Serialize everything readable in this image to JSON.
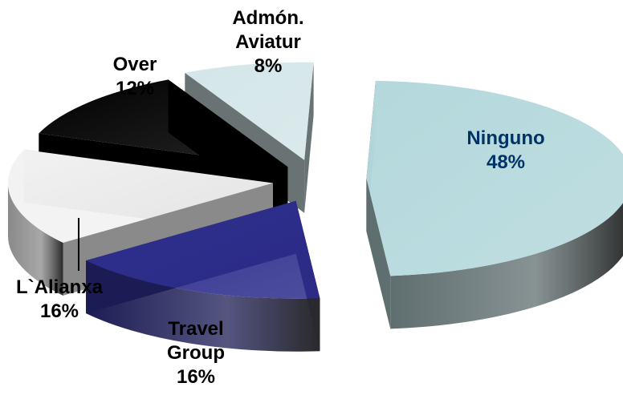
{
  "chart_data": {
    "type": "pie",
    "title": "",
    "slices": [
      {
        "label": "Ninguno",
        "name_lines": [
          "Ninguno"
        ],
        "pct_label": "48%",
        "value": 48,
        "color": "#b4d8dc",
        "side_color": "#5f6e6f"
      },
      {
        "label": "Travel Group",
        "name_lines": [
          "Travel",
          "Group"
        ],
        "pct_label": "16%",
        "value": 16,
        "color": "#2e2e8e",
        "side_color": "#1c1c55"
      },
      {
        "label": "L`Alianxa",
        "name_lines": [
          "L`Alianxa"
        ],
        "pct_label": "16%",
        "value": 16,
        "color": "#f2f2f2",
        "side_color": "#8a8a8a"
      },
      {
        "label": "Over",
        "name_lines": [
          "Over"
        ],
        "pct_label": "12%",
        "value": 12,
        "color": "#000000",
        "side_color": "#000000"
      },
      {
        "label": "Admón. Aviatur",
        "name_lines": [
          "Admón.",
          "Aviatur"
        ],
        "pct_label": "8%",
        "value": 8,
        "color": "#d4e6e8",
        "side_color": "#6a7374"
      }
    ],
    "start_angle_deg": -88,
    "exploded": true,
    "three_d": true,
    "label_color_inside": "#003366"
  }
}
